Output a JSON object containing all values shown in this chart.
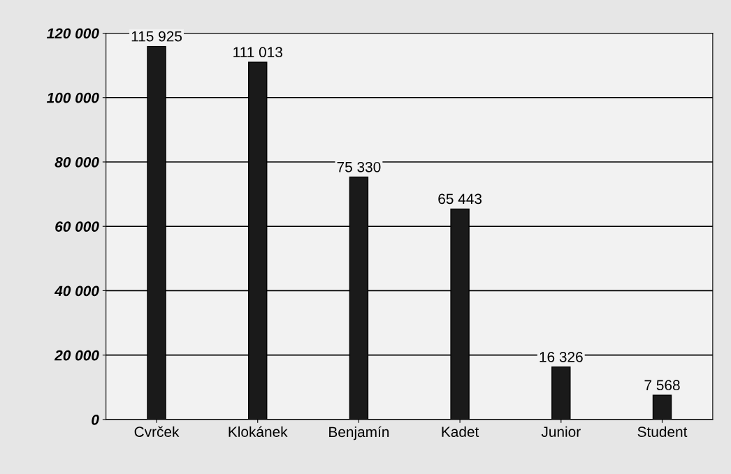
{
  "chart_data": {
    "type": "bar",
    "categories": [
      "Cvrček",
      "Klokánek",
      "Benjamín",
      "Kadet",
      "Junior",
      "Student"
    ],
    "values": [
      115925,
      111013,
      75330,
      65443,
      16326,
      7568
    ],
    "value_labels": [
      "115 925",
      "111 013",
      "75 330",
      "65 443",
      "16 326",
      "7 568"
    ],
    "color": "#1a1a1a",
    "ylim": [
      0,
      120000
    ],
    "yticks": [
      {
        "value": 0,
        "label": "0"
      },
      {
        "value": 20000,
        "label": "20 000"
      },
      {
        "value": 40000,
        "label": "40 000"
      },
      {
        "value": 60000,
        "label": "60 000"
      },
      {
        "value": 80000,
        "label": "80 000"
      },
      {
        "value": 100000,
        "label": "100 000"
      },
      {
        "value": 120000,
        "label": "120 000"
      }
    ],
    "grid": "y"
  }
}
